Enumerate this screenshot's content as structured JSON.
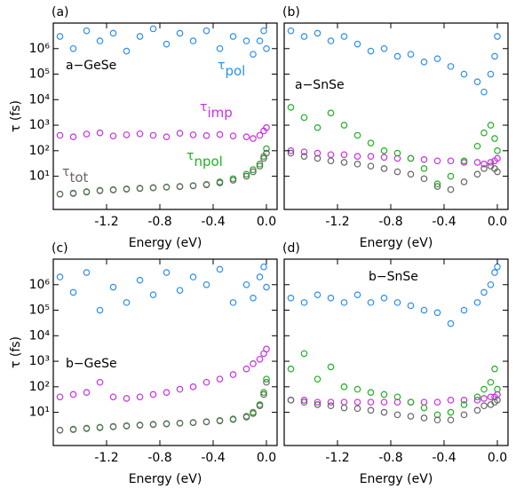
{
  "chart_data": [
    {
      "type": "scatter",
      "title": "(a)",
      "xlabel": "Energy (eV)",
      "ylabel": "τ (fs)",
      "log_y": true,
      "xlim": [
        -1.6,
        0.08
      ],
      "ylim": [
        0.5,
        10000000
      ],
      "xticks": [
        -1.2,
        -0.8,
        -0.4,
        {
          "value": 0,
          "label": "0.0"
        }
      ],
      "yticks": [
        {
          "value": 10,
          "label": "10¹"
        },
        {
          "value": 100,
          "label": "10²"
        },
        {
          "value": 1000,
          "label": "10³"
        },
        {
          "value": 10000,
          "label": "10⁴"
        },
        {
          "value": 100000,
          "label": "10⁵"
        },
        {
          "value": 1000000,
          "label": "10⁶"
        }
      ],
      "annotations": [
        "a−GeSe"
      ],
      "x": [
        -1.55,
        -1.45,
        -1.35,
        -1.25,
        -1.15,
        -1.05,
        -0.95,
        -0.85,
        -0.75,
        -0.65,
        -0.55,
        -0.45,
        -0.35,
        -0.25,
        -0.15,
        -0.1,
        -0.05,
        -0.02,
        0
      ],
      "series": [
        {
          "name": "τ",
          "sub": "pol",
          "color": "#2f8fea",
          "values": [
            3000000,
            1000000,
            5000000,
            2000000,
            4000000,
            800000,
            3000000,
            6000000,
            1500000,
            4000000,
            2000000,
            5000000,
            1000000,
            3000000,
            2000000,
            600000,
            2000000,
            5000000,
            1000000
          ]
        },
        {
          "name": "τ",
          "sub": "imp",
          "color": "#c433dd",
          "values": [
            400,
            350,
            450,
            500,
            380,
            420,
            460,
            400,
            350,
            480,
            420,
            390,
            430,
            380,
            350,
            300,
            400,
            600,
            800
          ]
        },
        {
          "name": "τ",
          "sub": "npol",
          "color": "#22b022",
          "values": [
            2,
            2.2,
            2.5,
            2.8,
            3,
            3.2,
            3.4,
            3.6,
            3.8,
            4,
            4.3,
            4.8,
            6,
            8,
            12,
            18,
            30,
            60,
            120
          ]
        },
        {
          "name": "τ",
          "sub": "tot",
          "color": "#666666",
          "values": [
            2,
            2.1,
            2.4,
            2.7,
            2.9,
            3.1,
            3.3,
            3.5,
            3.7,
            3.9,
            4.2,
            4.6,
            5.5,
            7,
            10,
            15,
            25,
            50,
            80
          ]
        }
      ]
    },
    {
      "type": "scatter",
      "title": "(b)",
      "xlabel": "Energy (eV)",
      "log_y": true,
      "xlim": [
        -1.6,
        0.08
      ],
      "ylim": [
        0.5,
        10000000
      ],
      "xticks": [
        -1.2,
        -0.8,
        -0.4,
        {
          "value": 0,
          "label": "0.0"
        }
      ],
      "yticks": [
        10,
        100,
        1000,
        10000,
        100000,
        1000000
      ],
      "annotations": [
        "a−SnSe"
      ],
      "x": [
        -1.55,
        -1.45,
        -1.35,
        -1.25,
        -1.15,
        -1.05,
        -0.95,
        -0.85,
        -0.75,
        -0.65,
        -0.55,
        -0.45,
        -0.35,
        -0.25,
        -0.15,
        -0.1,
        -0.05,
        -0.02,
        0
      ],
      "series": [
        {
          "color": "#2f8fea",
          "values": [
            5000000,
            3000000,
            4000000,
            2000000,
            3000000,
            1500000,
            800000,
            1000000,
            500000,
            600000,
            300000,
            400000,
            200000,
            100000,
            50000,
            20000,
            100000,
            500000,
            3000000
          ]
        },
        {
          "color": "#c433dd",
          "values": [
            100,
            90,
            80,
            70,
            70,
            60,
            60,
            55,
            50,
            50,
            45,
            40,
            40,
            35,
            35,
            30,
            35,
            40,
            50
          ]
        },
        {
          "color": "#22b022",
          "values": [
            5000,
            2000,
            800,
            3000,
            1000,
            400,
            200,
            100,
            80,
            50,
            20,
            5,
            10,
            40,
            150,
            500,
            1000,
            300,
            100
          ]
        },
        {
          "color": "#666666",
          "values": [
            80,
            60,
            50,
            40,
            35,
            30,
            25,
            20,
            15,
            12,
            8,
            4,
            3,
            6,
            12,
            20,
            25,
            20,
            15
          ]
        }
      ]
    },
    {
      "type": "scatter",
      "title": "(c)",
      "xlabel": "Energy (eV)",
      "ylabel": "τ (fs)",
      "log_y": true,
      "xlim": [
        -1.6,
        0.08
      ],
      "ylim": [
        0.5,
        10000000
      ],
      "xticks": [
        -1.2,
        -0.8,
        -0.4,
        {
          "value": 0,
          "label": "0.0"
        }
      ],
      "yticks": [
        {
          "value": 10,
          "label": "10¹"
        },
        {
          "value": 100,
          "label": "10²"
        },
        {
          "value": 1000,
          "label": "10³"
        },
        {
          "value": 10000,
          "label": "10⁴"
        },
        {
          "value": 100000,
          "label": "10⁵"
        },
        {
          "value": 1000000,
          "label": "10⁶"
        }
      ],
      "annotations": [
        "b−GeSe"
      ],
      "x": [
        -1.55,
        -1.45,
        -1.35,
        -1.25,
        -1.15,
        -1.05,
        -0.95,
        -0.85,
        -0.75,
        -0.65,
        -0.55,
        -0.45,
        -0.35,
        -0.25,
        -0.15,
        -0.1,
        -0.05,
        -0.02,
        0
      ],
      "series": [
        {
          "color": "#2f8fea",
          "values": [
            2000000,
            500000,
            3000000,
            100000,
            800000,
            200000,
            1500000,
            400000,
            3000000,
            600000,
            2000000,
            1000000,
            4000000,
            200000,
            1000000,
            300000,
            2000000,
            5000000,
            800000
          ]
        },
        {
          "color": "#c433dd",
          "values": [
            40,
            50,
            60,
            150,
            40,
            35,
            40,
            50,
            60,
            80,
            100,
            150,
            200,
            300,
            500,
            800,
            1200,
            2000,
            3000
          ]
        },
        {
          "color": "#22b022",
          "values": [
            2,
            2.2,
            2.4,
            2.6,
            2.8,
            3,
            3.2,
            3.4,
            3.6,
            3.8,
            4,
            4.3,
            4.8,
            5.5,
            7,
            10,
            20,
            60,
            200
          ]
        },
        {
          "color": "#666666",
          "values": [
            2,
            2.1,
            2.3,
            2.5,
            2.7,
            2.9,
            3.1,
            3.3,
            3.5,
            3.7,
            3.9,
            4.2,
            4.6,
            5.2,
            6.5,
            9,
            18,
            50,
            150
          ]
        }
      ]
    },
    {
      "type": "scatter",
      "title": "(d)",
      "xlabel": "Energy (eV)",
      "log_y": true,
      "xlim": [
        -1.6,
        0.08
      ],
      "ylim": [
        0.5,
        10000000
      ],
      "xticks": [
        -1.2,
        -0.8,
        -0.4,
        {
          "value": 0,
          "label": "0.0"
        }
      ],
      "yticks": [
        10,
        100,
        1000,
        10000,
        100000,
        1000000
      ],
      "annotations": [
        "b−SnSe"
      ],
      "x": [
        -1.55,
        -1.45,
        -1.35,
        -1.25,
        -1.15,
        -1.05,
        -0.95,
        -0.85,
        -0.75,
        -0.65,
        -0.55,
        -0.45,
        -0.35,
        -0.25,
        -0.15,
        -0.1,
        -0.05,
        -0.02,
        0
      ],
      "series": [
        {
          "color": "#2f8fea",
          "values": [
            300000,
            200000,
            400000,
            300000,
            200000,
            400000,
            200000,
            300000,
            200000,
            150000,
            100000,
            80000,
            30000,
            100000,
            200000,
            500000,
            1000000,
            3000000,
            5000000
          ]
        },
        {
          "color": "#c433dd",
          "values": [
            30,
            30,
            25,
            25,
            25,
            25,
            25,
            25,
            25,
            25,
            25,
            25,
            30,
            30,
            30,
            35,
            40,
            40,
            50
          ]
        },
        {
          "color": "#22b022",
          "values": [
            500,
            2000,
            200,
            600,
            100,
            80,
            60,
            50,
            40,
            25,
            15,
            8,
            10,
            20,
            40,
            80,
            150,
            500,
            80
          ]
        },
        {
          "color": "#666666",
          "values": [
            30,
            25,
            20,
            18,
            15,
            14,
            12,
            10,
            8,
            7,
            6,
            5,
            5,
            8,
            12,
            18,
            20,
            25,
            30
          ]
        }
      ]
    }
  ]
}
